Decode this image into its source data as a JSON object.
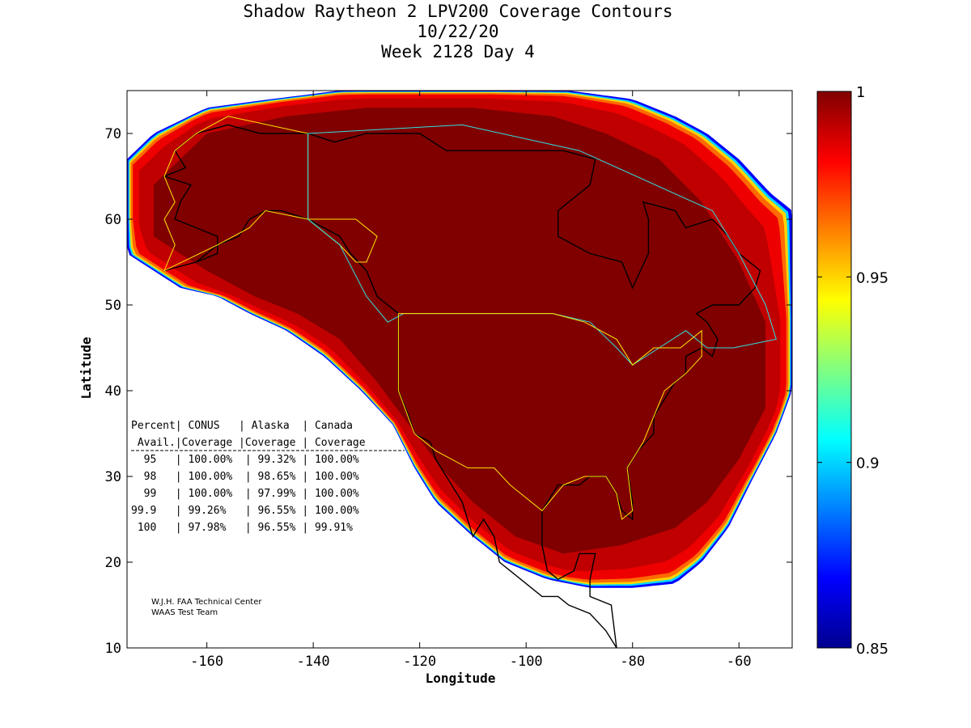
{
  "chart_data": {
    "type": "heatmap",
    "title_lines": [
      "Shadow Raytheon 2 LPV200 Coverage Contours",
      "10/22/20",
      "Week 2128 Day 4"
    ],
    "xlabel": "Longitude",
    "ylabel": "Latitude",
    "xlim": [
      -175,
      -50
    ],
    "ylim": [
      10,
      75
    ],
    "xticks": [
      -160,
      -140,
      -120,
      -100,
      -80,
      -60
    ],
    "yticks": [
      10,
      20,
      30,
      40,
      50,
      60,
      70
    ],
    "colorbar": {
      "min": 0.85,
      "max": 1,
      "ticks": [
        0.85,
        0.9,
        0.95,
        1
      ],
      "tick_labels": [
        "0.85",
        "0.9",
        "0.95",
        "1"
      ],
      "colormap": [
        "#00008f",
        "#0000ff",
        "#0080ff",
        "#00ffff",
        "#80ff80",
        "#ffff00",
        "#ff8000",
        "#ff0000",
        "#800000"
      ]
    },
    "coverage_table": {
      "header1": "Percent| CONUS   | Alaska  | Canada",
      "header2": " Avail.|Coverage |Coverage | Coverage",
      "rows": [
        "  95   | 100.00%  | 99.32% | 100.00%",
        "  98   | 100.00%  | 98.65% | 100.00%",
        "  99   | 100.00%  | 97.99% | 100.00%",
        "99.9   | 99.26%   | 96.55% | 100.00%",
        " 100   | 97.98%   | 96.55% | 99.91%"
      ]
    },
    "credits": [
      "W.J.H. FAA Technical Center",
      "WAAS Test Team"
    ],
    "coverage_region": {
      "outer_boundary_lonlat": [
        [
          -175,
          67
        ],
        [
          -170,
          70
        ],
        [
          -160,
          73
        ],
        [
          -148,
          74
        ],
        [
          -135,
          75
        ],
        [
          -110,
          75
        ],
        [
          -92,
          75
        ],
        [
          -80,
          74
        ],
        [
          -72,
          72
        ],
        [
          -66,
          70
        ],
        [
          -60,
          67
        ],
        [
          -54,
          63
        ],
        [
          -50,
          61
        ],
        [
          -50,
          40
        ],
        [
          -53,
          35
        ],
        [
          -58,
          29
        ],
        [
          -62,
          24
        ],
        [
          -67,
          20
        ],
        [
          -72,
          17.5
        ],
        [
          -80,
          17
        ],
        [
          -88,
          17
        ],
        [
          -96,
          18
        ],
        [
          -104,
          20
        ],
        [
          -110,
          23
        ],
        [
          -117,
          27
        ],
        [
          -121,
          31
        ],
        [
          -125,
          36
        ],
        [
          -131,
          40
        ],
        [
          -138,
          44
        ],
        [
          -145,
          47
        ],
        [
          -152,
          49
        ],
        [
          -158,
          51
        ],
        [
          -165,
          52
        ],
        [
          -175,
          56
        ]
      ],
      "core_boundary_lonlat": [
        [
          -170,
          64
        ],
        [
          -160,
          70
        ],
        [
          -145,
          72
        ],
        [
          -130,
          73
        ],
        [
          -110,
          73
        ],
        [
          -95,
          72
        ],
        [
          -85,
          70
        ],
        [
          -75,
          67
        ],
        [
          -67,
          62
        ],
        [
          -60,
          55
        ],
        [
          -55,
          48
        ],
        [
          -55,
          38
        ],
        [
          -60,
          32
        ],
        [
          -66,
          27
        ],
        [
          -72,
          24
        ],
        [
          -82,
          22
        ],
        [
          -93,
          21
        ],
        [
          -102,
          23
        ],
        [
          -110,
          27
        ],
        [
          -116,
          31
        ],
        [
          -122,
          36
        ],
        [
          -128,
          41
        ],
        [
          -135,
          46
        ],
        [
          -143,
          49
        ],
        [
          -151,
          51
        ],
        [
          -160,
          54
        ],
        [
          -170,
          58
        ]
      ]
    },
    "boundaries": {
      "alaska_service_volume": [
        [
          -168,
          54
        ],
        [
          -158,
          57
        ],
        [
          -152,
          59
        ],
        [
          -149,
          61
        ],
        [
          -141,
          60
        ],
        [
          -135,
          57
        ],
        [
          -132,
          55
        ],
        [
          -130,
          55
        ],
        [
          -128,
          58
        ],
        [
          -132,
          60
        ],
        [
          -141,
          60
        ],
        [
          -141,
          70
        ],
        [
          -156,
          72
        ],
        [
          -162,
          70
        ],
        [
          -166,
          68
        ],
        [
          -168,
          65
        ],
        [
          -166,
          62
        ],
        [
          -168,
          60
        ],
        [
          -166,
          57
        ],
        [
          -168,
          54
        ]
      ],
      "canada_service_volume": [
        [
          -141,
          70
        ],
        [
          -112,
          71
        ],
        [
          -90,
          68
        ],
        [
          -65,
          61
        ],
        [
          -60,
          56
        ],
        [
          -55,
          50
        ],
        [
          -53,
          46
        ],
        [
          -61,
          45
        ],
        [
          -66,
          45
        ],
        [
          -70,
          47
        ],
        [
          -75,
          45
        ],
        [
          -80,
          43
        ],
        [
          -83,
          45
        ],
        [
          -88,
          48
        ],
        [
          -95,
          49
        ],
        [
          -123,
          49
        ],
        [
          -126,
          48
        ],
        [
          -130,
          51
        ],
        [
          -135,
          57
        ],
        [
          -141,
          60
        ],
        [
          -141,
          70
        ]
      ],
      "conus_service_volume": [
        [
          -124,
          49
        ],
        [
          -95,
          49
        ],
        [
          -89,
          48
        ],
        [
          -83,
          46
        ],
        [
          -80,
          43
        ],
        [
          -76,
          45
        ],
        [
          -71,
          45
        ],
        [
          -67,
          47
        ],
        [
          -67,
          44
        ],
        [
          -70,
          42
        ],
        [
          -74,
          40
        ],
        [
          -76,
          37
        ],
        [
          -78,
          34
        ],
        [
          -81,
          31
        ],
        [
          -80,
          26
        ],
        [
          -82,
          25
        ],
        [
          -83,
          28
        ],
        [
          -85,
          30
        ],
        [
          -89,
          30
        ],
        [
          -93,
          29
        ],
        [
          -97,
          26
        ],
        [
          -103,
          29
        ],
        [
          -106,
          31
        ],
        [
          -111,
          31
        ],
        [
          -117,
          33
        ],
        [
          -121,
          35
        ],
        [
          -124,
          40
        ],
        [
          -124,
          49
        ]
      ]
    },
    "coastlines": [
      [
        [
          -168,
          54
        ],
        [
          -162,
          55
        ],
        [
          -158,
          57
        ],
        [
          -154,
          58
        ],
        [
          -152,
          60
        ],
        [
          -149,
          61
        ],
        [
          -146,
          61
        ],
        [
          -141,
          60
        ],
        [
          -138,
          59
        ],
        [
          -135,
          58
        ],
        [
          -133,
          56
        ],
        [
          -130,
          54
        ],
        [
          -128,
          51
        ],
        [
          -124,
          49
        ],
        [
          -124,
          46
        ],
        [
          -124,
          42
        ],
        [
          -124,
          40
        ],
        [
          -122,
          37
        ],
        [
          -121,
          35
        ],
        [
          -118,
          34
        ],
        [
          -117,
          32
        ],
        [
          -115,
          30
        ],
        [
          -112,
          27
        ],
        [
          -110,
          23
        ],
        [
          -108,
          25
        ],
        [
          -106,
          23
        ],
        [
          -105,
          20
        ],
        [
          -101,
          18
        ],
        [
          -97,
          16
        ],
        [
          -94,
          16
        ],
        [
          -92,
          15
        ],
        [
          -88,
          14
        ],
        [
          -85,
          12
        ],
        [
          -83,
          10
        ]
      ],
      [
        [
          -83,
          10
        ],
        [
          -84,
          15
        ],
        [
          -88,
          16
        ],
        [
          -88,
          18
        ],
        [
          -87,
          21
        ],
        [
          -90,
          21
        ],
        [
          -91,
          19
        ],
        [
          -94,
          18
        ],
        [
          -96,
          19
        ],
        [
          -97,
          22
        ],
        [
          -97,
          26
        ],
        [
          -94,
          29
        ],
        [
          -90,
          29
        ],
        [
          -88,
          30
        ],
        [
          -85,
          30
        ],
        [
          -83,
          28
        ],
        [
          -82,
          26
        ],
        [
          -80,
          25
        ],
        [
          -80,
          27
        ],
        [
          -81,
          31
        ],
        [
          -79,
          33
        ],
        [
          -76,
          35
        ],
        [
          -76,
          37
        ],
        [
          -74,
          39
        ],
        [
          -72,
          41
        ],
        [
          -70,
          42
        ],
        [
          -70,
          44
        ],
        [
          -67,
          45
        ],
        [
          -65,
          44
        ],
        [
          -64,
          46
        ],
        [
          -66,
          48
        ],
        [
          -68,
          49
        ],
        [
          -65,
          50
        ],
        [
          -60,
          50
        ],
        [
          -57,
          52
        ],
        [
          -56,
          54
        ],
        [
          -60,
          56
        ],
        [
          -62,
          58
        ],
        [
          -65,
          60
        ],
        [
          -70,
          59
        ],
        [
          -72,
          61
        ],
        [
          -78,
          62
        ],
        [
          -77,
          60
        ],
        [
          -77,
          56
        ],
        [
          -80,
          52
        ],
        [
          -82,
          55
        ],
        [
          -88,
          56
        ],
        [
          -94,
          58
        ],
        [
          -94,
          61
        ],
        [
          -88,
          64
        ],
        [
          -87,
          67
        ],
        [
          -93,
          68
        ],
        [
          -97,
          68
        ],
        [
          -104,
          68
        ],
        [
          -110,
          68
        ],
        [
          -115,
          68
        ],
        [
          -120,
          70
        ],
        [
          -125,
          70
        ],
        [
          -130,
          70
        ],
        [
          -136,
          69
        ],
        [
          -141,
          70
        ],
        [
          -150,
          70
        ],
        [
          -156,
          71
        ],
        [
          -162,
          70
        ],
        [
          -166,
          68
        ],
        [
          -164,
          66
        ],
        [
          -168,
          65
        ],
        [
          -163,
          64
        ],
        [
          -165,
          62
        ],
        [
          -166,
          60
        ],
        [
          -162,
          59
        ],
        [
          -158,
          58
        ],
        [
          -158,
          56
        ],
        [
          -162,
          55
        ]
      ]
    ]
  }
}
